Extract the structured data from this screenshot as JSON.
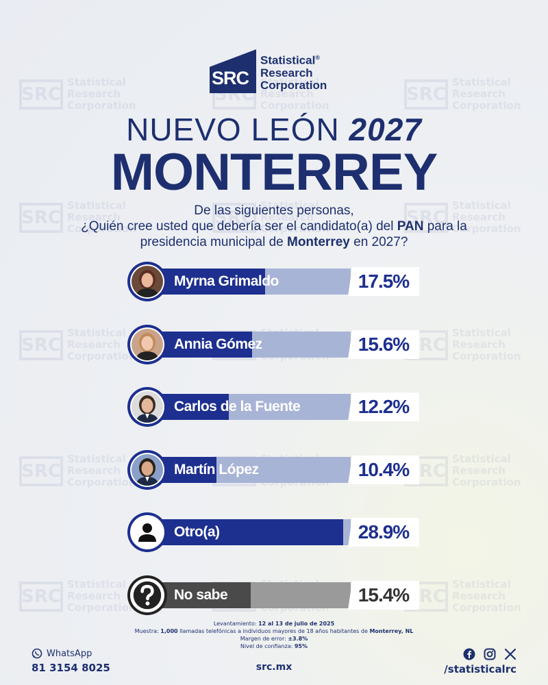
{
  "brand": {
    "mark_text": "SRC",
    "name_lines": [
      "Statistical",
      "Research",
      "Corporation"
    ],
    "registered": "®"
  },
  "header": {
    "title_prefix": "NUEVO LEÓN",
    "title_year": "2027",
    "city": "MONTERREY"
  },
  "question": {
    "line1": "De las siguientes personas,",
    "line2_pre": "¿Quién cree usted que debería ser el candidato(a) del ",
    "line2_bold": "PAN",
    "line2_post": " para la",
    "line3_pre": "presidencia municipal de ",
    "line3_bold": "Monterrey",
    "line3_post": " en 2027?"
  },
  "chart_data": {
    "type": "bar",
    "orientation": "horizontal",
    "categories": [
      "Myrna Grimaldo",
      "Annia Gómez",
      "Carlos de la Fuente",
      "Martín López",
      "Otro(a)",
      "No sabe"
    ],
    "values": [
      17.5,
      15.6,
      12.2,
      10.4,
      28.9,
      15.4
    ],
    "value_labels": [
      "17.5%",
      "15.6%",
      "12.2%",
      "10.4%",
      "28.9%",
      "15.4%"
    ],
    "xlim": [
      0,
      30
    ],
    "colors": {
      "bar": "#1d2f8f",
      "track": "#a8b4d6",
      "nosabe_bar": "#4a4a4a",
      "nosabe_track": "#9a9a9a"
    }
  },
  "footnote": {
    "levantamiento_label": "Levantamiento:",
    "levantamiento_value": "12 al 13 de julio de 2025",
    "muestra_label": "Muestra:",
    "muestra_pre": "1,000",
    "muestra_mid": " llamadas telefónicas a individuos mayores de 18 años habitantes de ",
    "muestra_city": "Monterrey, NL",
    "margen_label": "Margen de error:",
    "margen_value": "±3.8%",
    "nivel_label": "Nivel de confianza:",
    "nivel_value": "95%"
  },
  "footer": {
    "whatsapp_label": "WhatsApp",
    "whatsapp_number": "81 3154 8025",
    "site": "src.mx",
    "handle": "/statisticalrc"
  },
  "watermark": {
    "mark": "SRC",
    "lines": [
      "Statistical",
      "Research",
      "Corporation"
    ]
  }
}
